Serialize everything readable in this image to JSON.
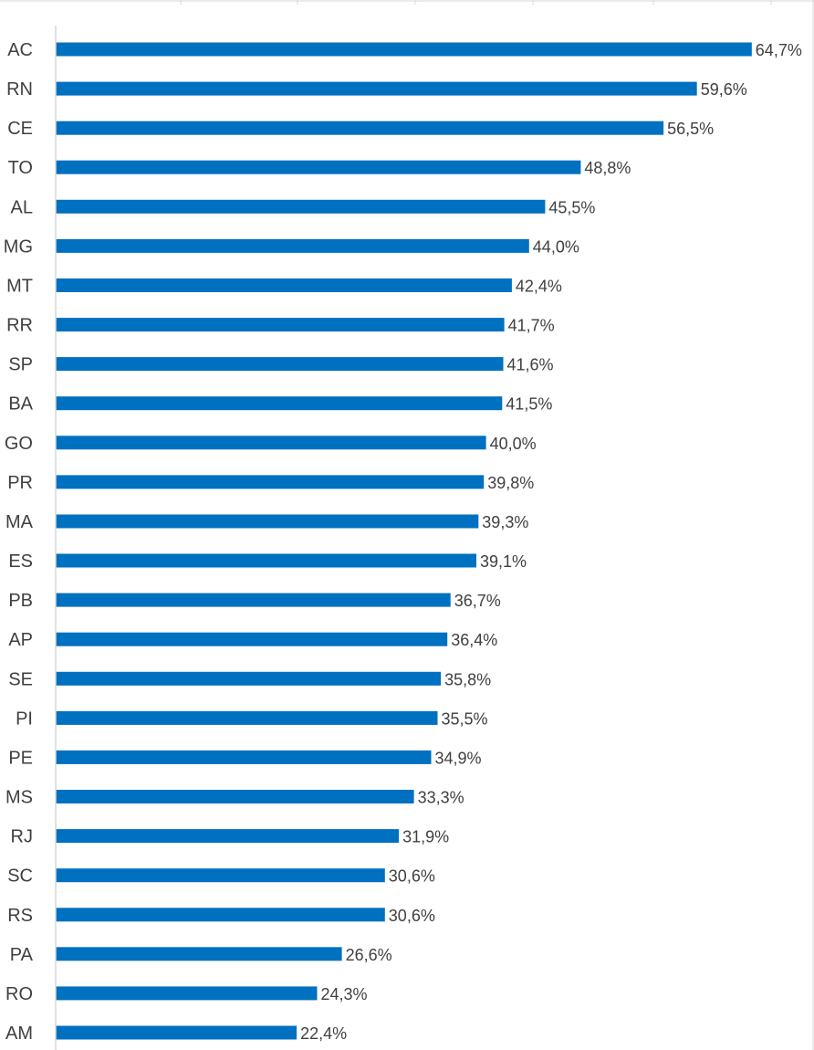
{
  "chart_data": {
    "type": "bar",
    "orientation": "horizontal",
    "title": "",
    "xlabel": "",
    "ylabel": "",
    "categories": [
      "AC",
      "RN",
      "CE",
      "TO",
      "AL",
      "MG",
      "MT",
      "RR",
      "SP",
      "BA",
      "GO",
      "PR",
      "MA",
      "ES",
      "PB",
      "AP",
      "SE",
      "PI",
      "PE",
      "MS",
      "RJ",
      "SC",
      "RS",
      "PA",
      "RO",
      "AM"
    ],
    "values": [
      64.7,
      59.6,
      56.5,
      48.8,
      45.5,
      44.0,
      42.4,
      41.7,
      41.6,
      41.5,
      40.0,
      39.8,
      39.3,
      39.1,
      36.7,
      36.4,
      35.8,
      35.5,
      34.9,
      33.3,
      31.9,
      30.6,
      30.6,
      26.6,
      24.3,
      22.4
    ],
    "value_labels": [
      "64,7%",
      "59,6%",
      "56,5%",
      "48,8%",
      "45,5%",
      "44,0%",
      "42,4%",
      "41,7%",
      "41,6%",
      "41,5%",
      "40,0%",
      "39,8%",
      "39,3%",
      "39,1%",
      "36,7%",
      "36,4%",
      "35,8%",
      "35,5%",
      "34,9%",
      "33,3%",
      "31,9%",
      "30,6%",
      "30,6%",
      "26,6%",
      "24,3%",
      "22,4%"
    ],
    "xlim": [
      0,
      65
    ],
    "colors": {
      "bar": "#0070C0",
      "text": "#404040",
      "axis": "#D9D9D9",
      "grid": "#D9D9D9"
    }
  }
}
